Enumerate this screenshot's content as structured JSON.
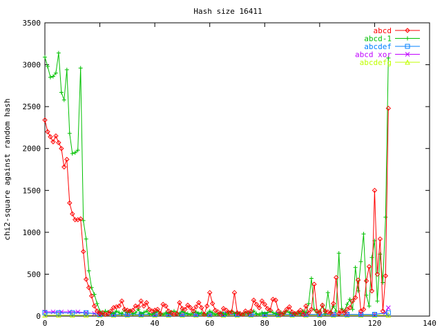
{
  "chart_data": {
    "type": "line",
    "title": "Hash size 16411",
    "xlabel": "",
    "ylabel": "chi2-square against random hash",
    "xlim": [
      0,
      140
    ],
    "ylim": [
      0,
      3500
    ],
    "x_ticks": [
      0,
      20,
      40,
      60,
      80,
      100,
      120,
      140
    ],
    "y_ticks": [
      0,
      500,
      1000,
      1500,
      2000,
      2500,
      3000,
      3500
    ],
    "grid": false,
    "legend_position": "top-right",
    "series": [
      {
        "name": "abcd",
        "color": "#ff0000",
        "marker": "diamond",
        "x": [
          0,
          1,
          2,
          3,
          4,
          5,
          6,
          7,
          8,
          9,
          10,
          11,
          12,
          13,
          14,
          15,
          16,
          17,
          18,
          19,
          20,
          21,
          22,
          23,
          24,
          25,
          26,
          27,
          28,
          29,
          30,
          31,
          32,
          33,
          34,
          35,
          36,
          37,
          38,
          39,
          40,
          41,
          42,
          43,
          44,
          45,
          46,
          47,
          48,
          49,
          50,
          51,
          52,
          53,
          54,
          55,
          56,
          57,
          58,
          59,
          60,
          61,
          62,
          63,
          64,
          65,
          66,
          67,
          68,
          69,
          70,
          71,
          72,
          73,
          74,
          75,
          76,
          77,
          78,
          79,
          80,
          81,
          82,
          83,
          84,
          85,
          86,
          87,
          88,
          89,
          90,
          91,
          92,
          93,
          94,
          95,
          96,
          97,
          98,
          99,
          100,
          101,
          102,
          103,
          104,
          105,
          106,
          107,
          108,
          109,
          110,
          111,
          112,
          113,
          114,
          115,
          116,
          117,
          118,
          119,
          120,
          121,
          122,
          123,
          124,
          125
        ],
        "y": [
          2340,
          2200,
          2140,
          2080,
          2150,
          2070,
          2000,
          1780,
          1870,
          1350,
          1220,
          1150,
          1150,
          1160,
          770,
          440,
          340,
          240,
          120,
          60,
          30,
          40,
          20,
          30,
          60,
          100,
          110,
          120,
          180,
          80,
          70,
          60,
          70,
          120,
          110,
          180,
          120,
          160,
          80,
          60,
          70,
          80,
          30,
          140,
          120,
          60,
          40,
          20,
          30,
          160,
          90,
          80,
          130,
          100,
          60,
          110,
          160,
          100,
          20,
          120,
          280,
          150,
          70,
          50,
          20,
          90,
          70,
          40,
          50,
          280,
          40,
          30,
          20,
          60,
          40,
          60,
          190,
          140,
          100,
          180,
          140,
          90,
          70,
          200,
          190,
          60,
          20,
          40,
          80,
          110,
          50,
          30,
          40,
          70,
          20,
          120,
          40,
          80,
          380,
          60,
          40,
          130,
          60,
          50,
          40,
          150,
          460,
          30,
          60,
          40,
          80,
          100,
          180,
          220,
          430,
          60,
          80,
          420,
          590,
          300,
          1500,
          500,
          920,
          60,
          480,
          2480
        ],
        "tail": [
          [
            124,
            700
          ],
          [
            124.5,
            1700
          ],
          [
            125,
            2480
          ]
        ]
      },
      {
        "name": "abcd-1",
        "color": "#00c000",
        "marker": "plus",
        "x": [
          0,
          1,
          2,
          3,
          4,
          5,
          6,
          7,
          8,
          9,
          10,
          11,
          12,
          13,
          14,
          15,
          16,
          17,
          18,
          19,
          20,
          21,
          22,
          23,
          24,
          25,
          26,
          27,
          28,
          29,
          30,
          31,
          32,
          33,
          34,
          35,
          36,
          37,
          38,
          39,
          40,
          41,
          42,
          43,
          44,
          45,
          46,
          47,
          48,
          49,
          50,
          51,
          52,
          53,
          54,
          55,
          56,
          57,
          58,
          59,
          60,
          61,
          62,
          63,
          64,
          65,
          66,
          67,
          68,
          69,
          70,
          71,
          72,
          73,
          74,
          75,
          76,
          77,
          78,
          79,
          80,
          81,
          82,
          83,
          84,
          85,
          86,
          87,
          88,
          89,
          90,
          91,
          92,
          93,
          94,
          95,
          96,
          97,
          98,
          99,
          100,
          101,
          102,
          103,
          104,
          105,
          106,
          107,
          108,
          109,
          110,
          111,
          112,
          113,
          114,
          115,
          116,
          117,
          118,
          119,
          120,
          121,
          122,
          123,
          124,
          125
        ],
        "y": [
          3090,
          2980,
          2850,
          2860,
          2900,
          3140,
          2670,
          2580,
          2940,
          2180,
          1940,
          1950,
          1980,
          2960,
          1140,
          920,
          540,
          340,
          260,
          150,
          60,
          30,
          60,
          50,
          40,
          30,
          60,
          40,
          30,
          70,
          40,
          60,
          30,
          40,
          80,
          30,
          40,
          60,
          30,
          20,
          40,
          60,
          30,
          20,
          40,
          30,
          50,
          60,
          40,
          30,
          60,
          40,
          30,
          20,
          40,
          50,
          30,
          40,
          20,
          30,
          60,
          40,
          20,
          30,
          40,
          30,
          20,
          40,
          60,
          30,
          40,
          30,
          20,
          40,
          30,
          40,
          60,
          30,
          20,
          40,
          30,
          40,
          60,
          40,
          30,
          20,
          40,
          30,
          60,
          40,
          30,
          20,
          40,
          30,
          60,
          40,
          150,
          450,
          80,
          40,
          60,
          120,
          30,
          280,
          40,
          120,
          60,
          750,
          90,
          60,
          140,
          200,
          80,
          580,
          300,
          650,
          980,
          250,
          120,
          700,
          900,
          180,
          740,
          400,
          1180,
          3080
        ]
      },
      {
        "name": "abcdef",
        "color": "#0080ff",
        "marker": "square",
        "x": [
          0,
          5,
          10,
          15,
          20,
          25,
          30,
          35,
          40,
          45,
          50,
          55,
          60,
          65,
          70,
          75,
          80,
          85,
          90,
          95,
          100,
          105,
          110,
          115,
          120,
          125
        ],
        "y": [
          40,
          40,
          40,
          40,
          20,
          20,
          20,
          20,
          20,
          20,
          20,
          20,
          20,
          20,
          20,
          20,
          20,
          20,
          20,
          20,
          20,
          20,
          20,
          20,
          20,
          40
        ]
      },
      {
        "name": "abcd xor",
        "color": "#c000ff",
        "marker": "x",
        "x": [
          0,
          3,
          6,
          9,
          12,
          15,
          18,
          20,
          25,
          30,
          35,
          40,
          45,
          50,
          55,
          60,
          65,
          70,
          75,
          80,
          85,
          90,
          95,
          100,
          105,
          110,
          115,
          120,
          124,
          125
        ],
        "y": [
          50,
          50,
          50,
          50,
          50,
          40,
          30,
          20,
          20,
          20,
          20,
          20,
          20,
          20,
          20,
          20,
          20,
          20,
          20,
          20,
          20,
          20,
          20,
          20,
          20,
          20,
          20,
          20,
          40,
          100
        ]
      },
      {
        "name": "abcdefg",
        "color": "#c0ff00",
        "marker": "triangle",
        "x": [
          0,
          5,
          10,
          15,
          20,
          25,
          30,
          35,
          40,
          45,
          50,
          55,
          60,
          65,
          70,
          75,
          80,
          85,
          90,
          95,
          100,
          105,
          110,
          115,
          120,
          125
        ],
        "y": [
          10,
          10,
          10,
          10,
          10,
          10,
          10,
          10,
          10,
          10,
          10,
          10,
          10,
          10,
          10,
          10,
          10,
          10,
          10,
          10,
          10,
          10,
          10,
          10,
          10,
          10
        ]
      }
    ]
  }
}
